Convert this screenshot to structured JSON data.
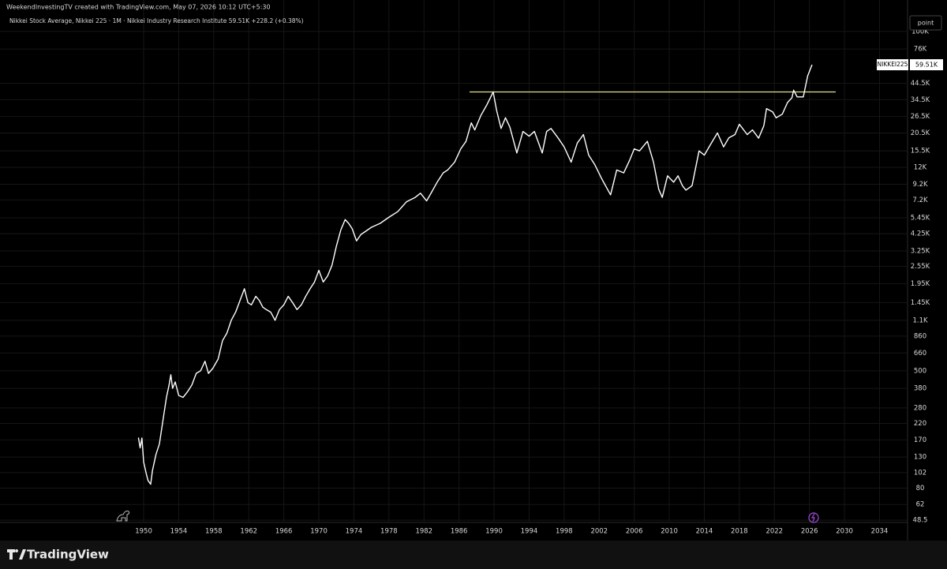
{
  "header": {
    "attribution": "WeekendInvestingTV created with TradingView.com, May 07, 2026 10:12 UTC+5:30",
    "legend": "Nikkei Stock Average, Nikkei 225 · 1M · Nikkei Industry Research Institute  59.51K  +228.2 (+0.38%)",
    "scale_button": "point"
  },
  "price_tag": {
    "symbol": "NIKKEI225",
    "price": "59.51K"
  },
  "footer": {
    "brand": "TradingView"
  },
  "chart_data": {
    "type": "line",
    "log_scale": true,
    "grid": true,
    "x": [
      1949.4,
      1949.6,
      1949.8,
      1950.0,
      1950.3,
      1950.5,
      1950.8,
      1951.0,
      1951.4,
      1951.8,
      1952.2,
      1952.6,
      1952.9,
      1953.1,
      1953.3,
      1953.6,
      1954.0,
      1954.5,
      1955.0,
      1955.5,
      1956.0,
      1956.5,
      1957.0,
      1957.4,
      1957.9,
      1958.5,
      1959.0,
      1959.5,
      1960.0,
      1960.5,
      1961.0,
      1961.5,
      1961.9,
      1962.3,
      1962.8,
      1963.2,
      1963.6,
      1964.0,
      1964.5,
      1965.0,
      1965.5,
      1966.0,
      1966.5,
      1967.0,
      1967.5,
      1968.0,
      1968.5,
      1969.0,
      1969.5,
      1970.0,
      1970.5,
      1971.0,
      1971.5,
      1972.0,
      1972.5,
      1973.0,
      1973.4,
      1973.8,
      1974.3,
      1974.8,
      1975.3,
      1976.0,
      1977.0,
      1978.0,
      1979.0,
      1980.0,
      1981.0,
      1981.6,
      1982.3,
      1982.8,
      1983.5,
      1984.2,
      1984.7,
      1985.5,
      1986.2,
      1986.8,
      1987.4,
      1987.8,
      1988.5,
      1989.2,
      1989.9,
      1990.3,
      1990.8,
      1991.3,
      1991.8,
      1992.6,
      1993.3,
      1994.0,
      1994.6,
      1995.5,
      1996.0,
      1996.5,
      1997.3,
      1998.0,
      1998.8,
      1999.5,
      2000.2,
      2000.8,
      2001.5,
      2002.3,
      2003.3,
      2004.0,
      2004.8,
      2005.5,
      2006.0,
      2006.6,
      2007.5,
      2008.2,
      2008.8,
      2009.2,
      2009.8,
      2010.5,
      2011.0,
      2011.5,
      2011.9,
      2012.6,
      2013.4,
      2014.0,
      2014.8,
      2015.5,
      2016.2,
      2016.8,
      2017.5,
      2018.0,
      2018.9,
      2019.5,
      2020.2,
      2020.8,
      2021.1,
      2021.8,
      2022.2,
      2022.9,
      2023.5,
      2024.0,
      2024.2,
      2024.6,
      2025.3,
      2025.8,
      2026.3
    ],
    "series": [
      {
        "name": "Nikkei 225",
        "color": "#ffffff",
        "values": [
          176,
          150,
          175,
          120,
          100,
          90,
          85,
          105,
          135,
          160,
          230,
          330,
          400,
          470,
          380,
          420,
          340,
          330,
          360,
          400,
          480,
          500,
          580,
          480,
          520,
          600,
          800,
          900,
          1100,
          1250,
          1500,
          1800,
          1450,
          1400,
          1600,
          1500,
          1350,
          1300,
          1250,
          1100,
          1300,
          1400,
          1600,
          1450,
          1300,
          1400,
          1600,
          1800,
          2000,
          2400,
          2000,
          2200,
          2600,
          3500,
          4500,
          5300,
          5000,
          4600,
          3800,
          4200,
          4400,
          4700,
          5000,
          5500,
          6000,
          7000,
          7500,
          8000,
          7100,
          8000,
          9500,
          11000,
          11500,
          13000,
          16000,
          18000,
          24000,
          21500,
          27000,
          32000,
          38900,
          29000,
          22000,
          26000,
          22500,
          15000,
          21000,
          19500,
          21000,
          15000,
          21000,
          22000,
          19000,
          16500,
          13000,
          17500,
          20000,
          14500,
          12500,
          10000,
          7800,
          11500,
          11000,
          13500,
          16000,
          15500,
          18000,
          13000,
          8500,
          7500,
          10500,
          9500,
          10500,
          9000,
          8400,
          9000,
          15500,
          14500,
          17500,
          20500,
          16500,
          19000,
          20000,
          23500,
          20000,
          21500,
          18900,
          23000,
          30000,
          28500,
          26000,
          27500,
          33000,
          35500,
          40000,
          36000,
          36000,
          50000,
          59510
        ]
      }
    ],
    "xlim": [
      1933.6,
      2037.2
    ],
    "ylim": [
      37.5,
      113000
    ],
    "xticks": [
      1950,
      1954,
      1958,
      1962,
      1966,
      1970,
      1974,
      1978,
      1982,
      1986,
      1990,
      1994,
      1998,
      2002,
      2006,
      2010,
      2014,
      2018,
      2022,
      2026,
      2030,
      2034
    ],
    "yticks": [
      {
        "value": 100000,
        "label": "100K"
      },
      {
        "value": 76000,
        "label": "76K"
      },
      {
        "value": 44500,
        "label": "44.5K"
      },
      {
        "value": 34500,
        "label": "34.5K"
      },
      {
        "value": 26500,
        "label": "26.5K"
      },
      {
        "value": 20500,
        "label": "20.5K"
      },
      {
        "value": 15500,
        "label": "15.5K"
      },
      {
        "value": 12000,
        "label": "12K"
      },
      {
        "value": 9200,
        "label": "9.2K"
      },
      {
        "value": 7200,
        "label": "7.2K"
      },
      {
        "value": 5450,
        "label": "5.45K"
      },
      {
        "value": 4250,
        "label": "4.25K"
      },
      {
        "value": 3250,
        "label": "3.25K"
      },
      {
        "value": 2550,
        "label": "2.55K"
      },
      {
        "value": 1950,
        "label": "1.95K"
      },
      {
        "value": 1450,
        "label": "1.45K"
      },
      {
        "value": 1100,
        "label": "1.1K"
      },
      860,
      660,
      500,
      380,
      280,
      220,
      170,
      130,
      102,
      80,
      62,
      48.5
    ],
    "hline": {
      "value": 38915,
      "x": [
        1987.2,
        2029
      ],
      "color": "#e8dc8c"
    }
  }
}
